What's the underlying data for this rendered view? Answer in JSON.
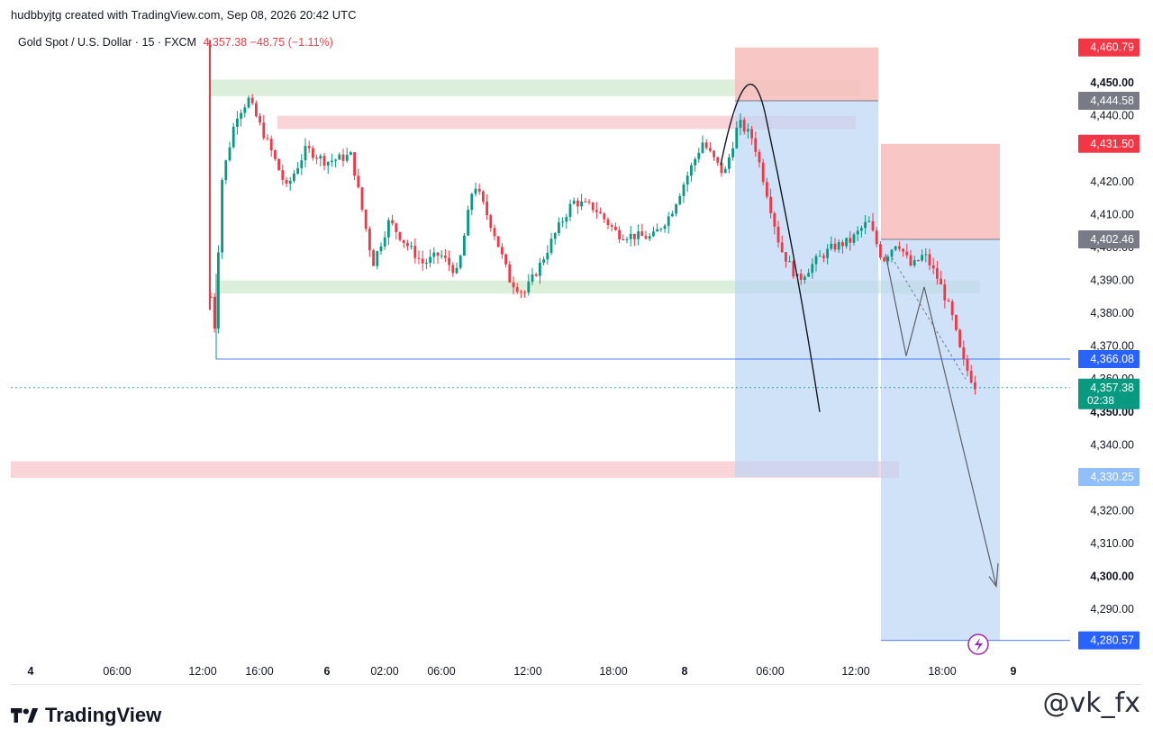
{
  "header": {
    "created_by": "hudbbyjtg created with TradingView.com, Sep 08, 2026 20:42 UTC"
  },
  "legend": {
    "symbol": "Gold Spot / U.S. Dollar · 15 · FXCM",
    "price_change": "4,357.38  −48.75 (−1.11%)"
  },
  "branding": {
    "logo_text": "TradingView",
    "watermark": "@vk_fx"
  },
  "colors": {
    "bull": "#089981",
    "bear": "#f23645",
    "supply_zone": "#f7c6cc",
    "demand_zone": "#cfeacf",
    "short_target": "#bcd6f5",
    "short_stop": "#f8bcbc",
    "label_red": "#f23645",
    "label_gray": "#787b86",
    "label_blue": "#2962ff",
    "label_green": "#089981",
    "label_lightblue": "#90bff9"
  },
  "chart_data": {
    "type": "candlestick",
    "symbol": "XAUUSD",
    "timeframe": "15",
    "ylim": [
      4275,
      4467
    ],
    "y_ticks": [
      4290,
      4300,
      4310,
      4320,
      4340,
      4350,
      4360,
      4370,
      4380,
      4390,
      4400,
      4410,
      4420,
      4440,
      4450
    ],
    "y_tick_labels": [
      "4,290.00",
      "4,300.00",
      "4,310.00",
      "4,320.00",
      "4,340.00",
      "4,350.00",
      "4,360.00",
      "4,370.00",
      "4,380.00",
      "4,390.00",
      "4,400.00",
      "4,410.00",
      "4,420.00",
      "4,440.00",
      "4,450.00"
    ],
    "bold_ticks": [
      "4,300.00",
      "4,350.00",
      "4,450.00"
    ],
    "x_labels": [
      "4",
      "06:00",
      "12:00",
      "16:00",
      "6",
      "02:00",
      "06:00",
      "12:00",
      "18:00",
      "8",
      "06:00",
      "12:00",
      "18:00",
      "9"
    ],
    "x_bold": [
      "4",
      "6",
      "8",
      "9"
    ],
    "price_labels": [
      {
        "text": "4,460.79",
        "value": 4460.79,
        "color": "label_red"
      },
      {
        "text": "4,444.58",
        "value": 4444.58,
        "color": "label_gray"
      },
      {
        "text": "4,431.50",
        "value": 4431.5,
        "color": "label_red"
      },
      {
        "text": "4,402.46",
        "value": 4402.46,
        "color": "label_gray"
      },
      {
        "text": "4,366.08",
        "value": 4366.08,
        "color": "label_blue"
      },
      {
        "text": "4,357.38",
        "sub": "02:38",
        "value": 4357.38,
        "color": "label_green"
      },
      {
        "text": "4,330.25",
        "value": 4330.25,
        "color": "label_lightblue"
      },
      {
        "text": "4,280.57",
        "value": 4280.57,
        "color": "label_blue"
      }
    ],
    "horizontal_lines": [
      {
        "value": 4366.08,
        "style": "solid",
        "color": "#2962ff"
      },
      {
        "value": 4357.38,
        "style": "dotted",
        "color": "#089981"
      },
      {
        "value": 4280.57,
        "style": "solid",
        "color": "#2962ff"
      }
    ],
    "zones": [
      {
        "kind": "demand",
        "from": 4446,
        "to": 4451
      },
      {
        "kind": "supply",
        "from": 4436,
        "to": 4440
      },
      {
        "kind": "demand",
        "from": 4386,
        "to": 4390
      },
      {
        "kind": "supply",
        "from": 4330,
        "to": 4335
      }
    ],
    "positions": [
      {
        "kind": "short",
        "entry": 4444.58,
        "stop": 4460.79,
        "target": 4330.25
      },
      {
        "kind": "short",
        "entry": 4402.46,
        "stop": 4431.5,
        "target": 4280.57
      }
    ],
    "last_price": 4357.38,
    "change": -48.75,
    "change_pct": -1.11
  }
}
